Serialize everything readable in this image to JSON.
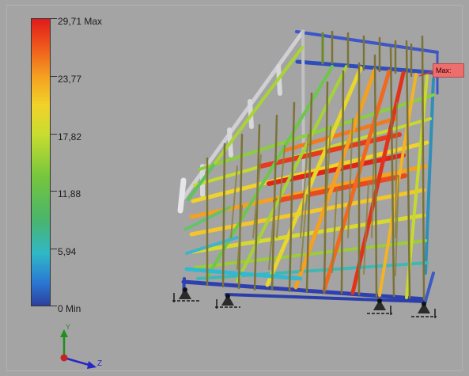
{
  "legend": {
    "max_label": "29,71 Max",
    "v5_label": "23,77",
    "v4_label": "17,82",
    "v3_label": "11,88",
    "v2_label": "5,94",
    "min_label": "0 Min",
    "colors": {
      "max": "#e11a1a",
      "high": "#f4a020",
      "mid_high": "#f2d22a",
      "mid": "#76c63d",
      "mid_low": "#2fb8c8",
      "low": "#2a78d2",
      "min": "#2c3f9e"
    }
  },
  "probe": {
    "max_tag": "Max:"
  },
  "triad": {
    "y_label": "Y",
    "z_label": "Z"
  },
  "background_color": "#a4a4a4"
}
